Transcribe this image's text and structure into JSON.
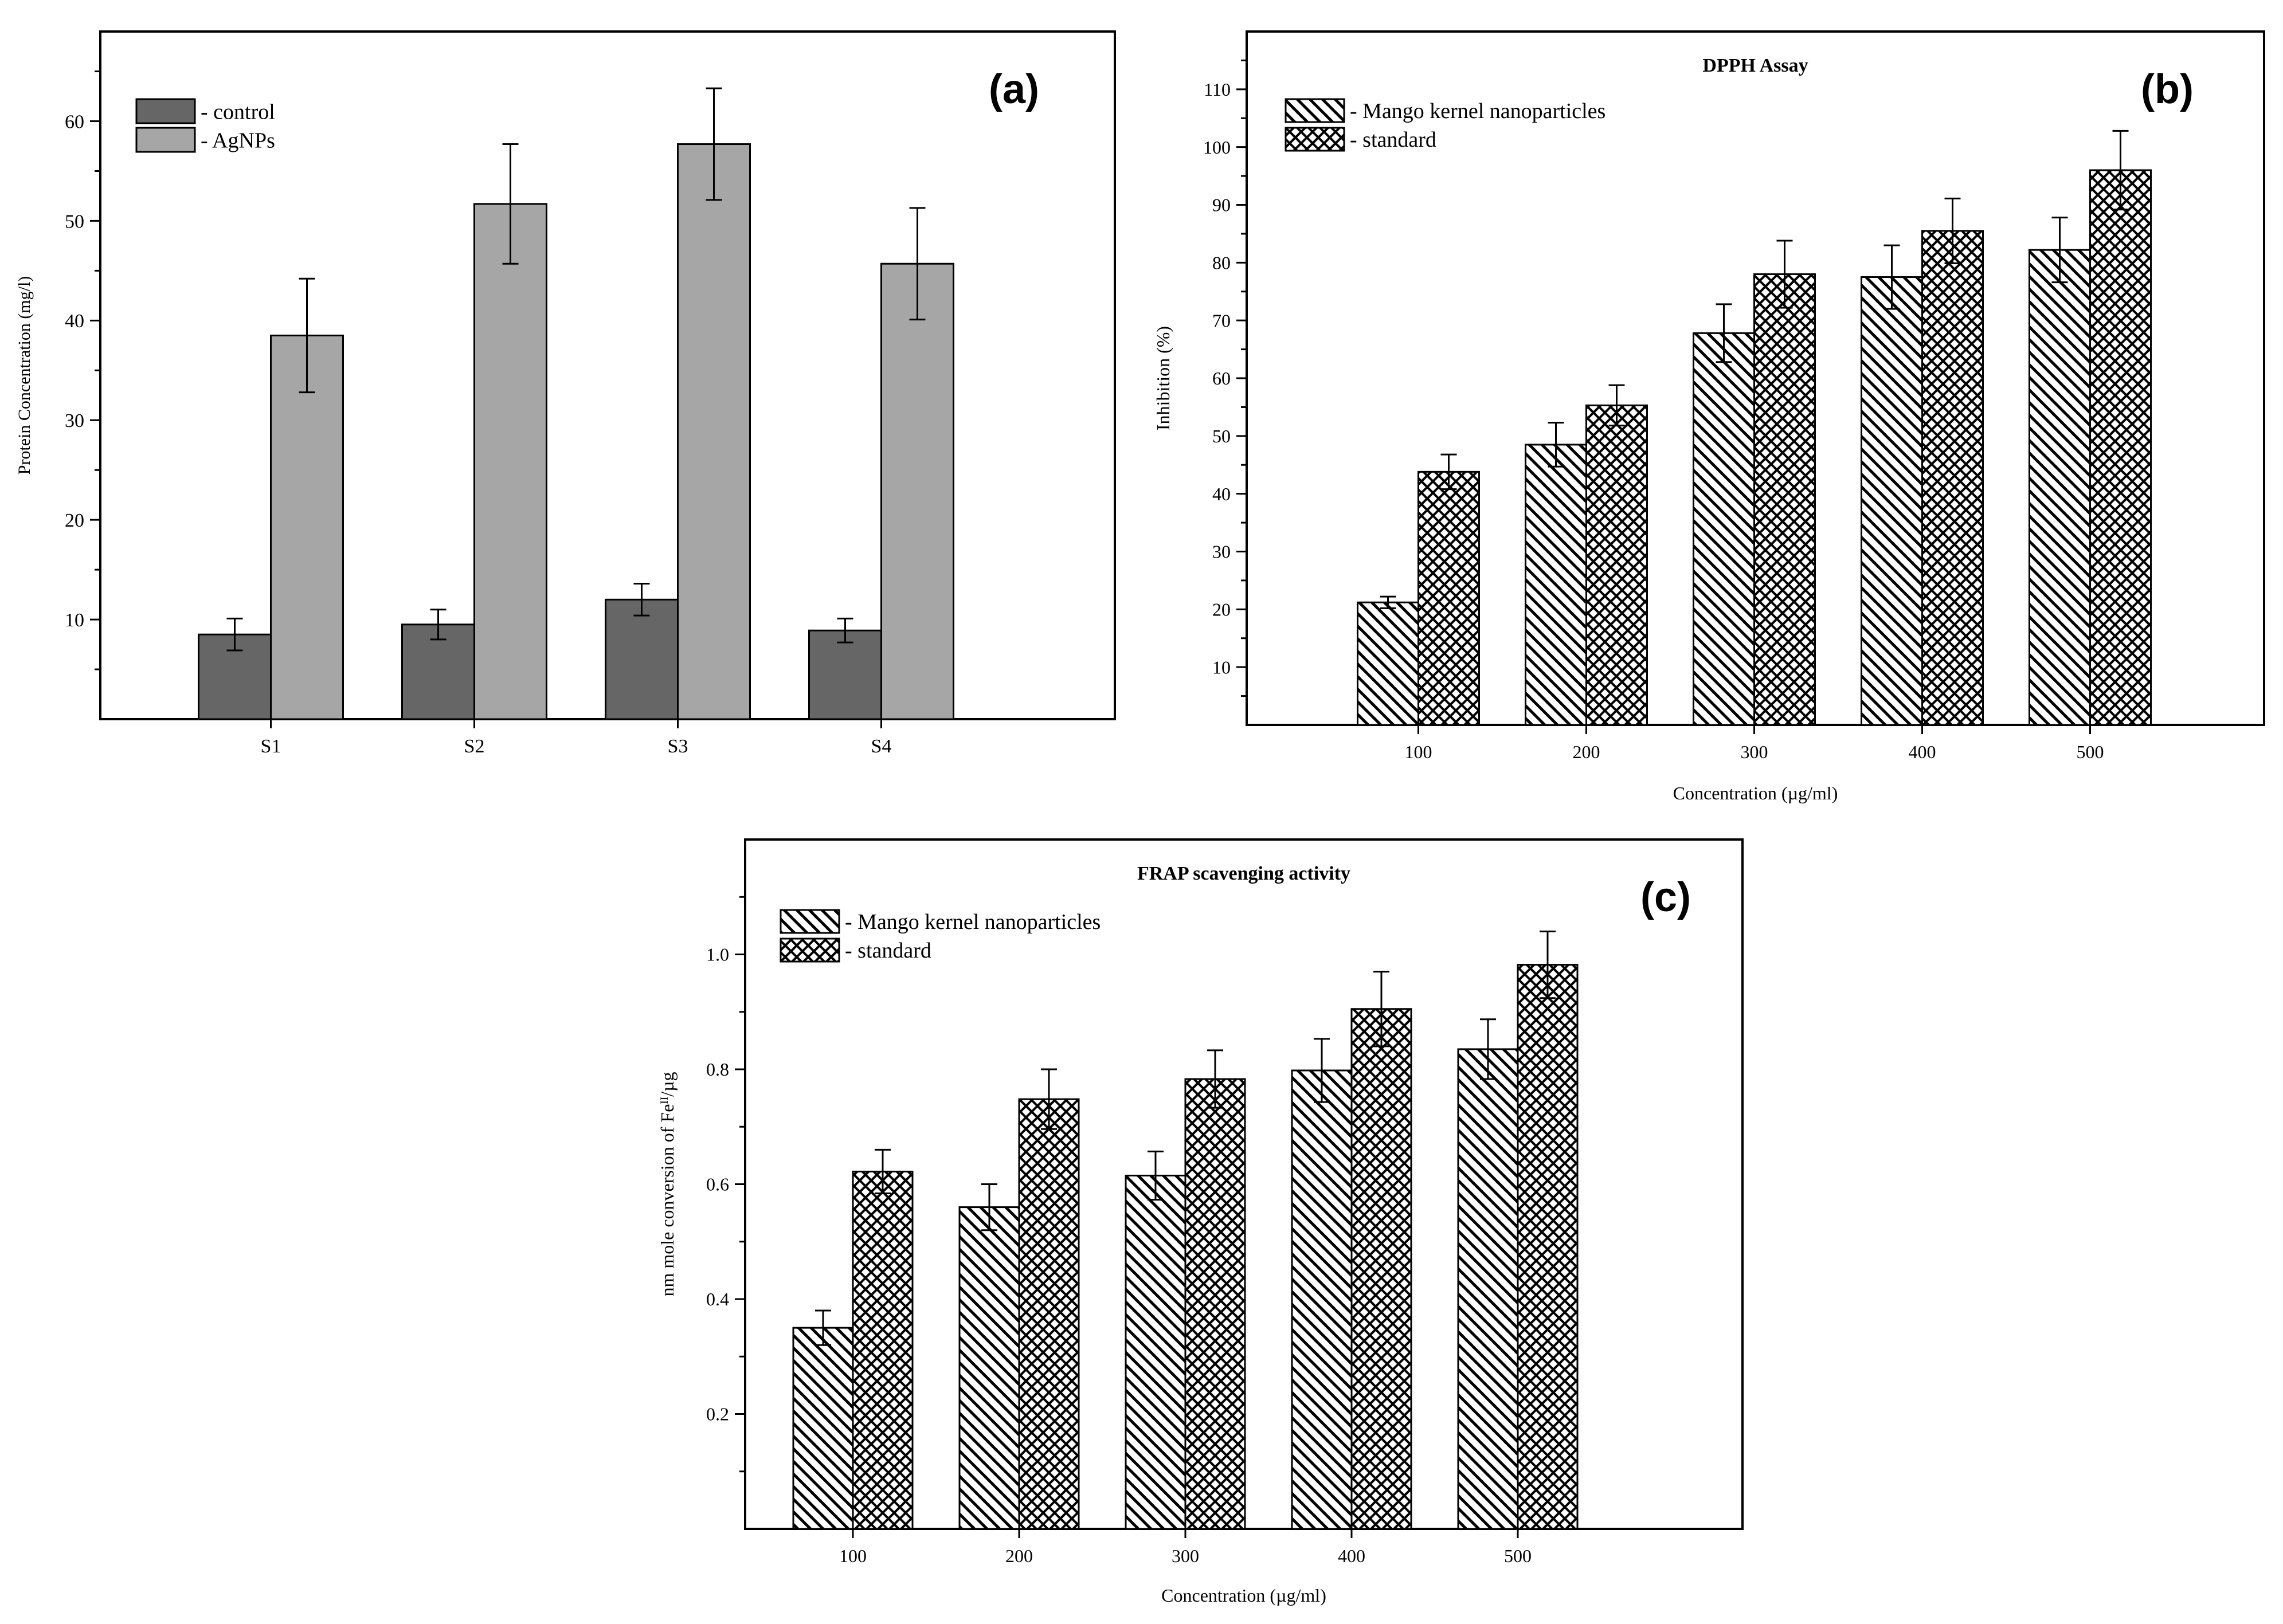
{
  "chart_data": [
    {
      "type": "bar",
      "panel_label": "(a)",
      "title": "",
      "xlabel": "",
      "ylabel": "Protein Concentration (mg/l)",
      "ylim": [
        0,
        69
      ],
      "yticks": [
        10,
        20,
        30,
        40,
        50,
        60
      ],
      "categories": [
        "S1",
        "S2",
        "S3",
        "S4"
      ],
      "series": [
        {
          "name": "- control",
          "fill": "solid",
          "color": "#666666",
          "values": [
            8.5,
            9.5,
            12.0,
            8.9
          ],
          "errors": [
            1.6,
            1.5,
            1.6,
            1.2
          ]
        },
        {
          "name": "- AgNPs",
          "fill": "solid",
          "color": "#a6a6a6",
          "values": [
            38.5,
            51.7,
            57.7,
            45.7
          ],
          "errors": [
            5.7,
            6.0,
            5.6,
            5.6
          ]
        }
      ],
      "legend": "top-left"
    },
    {
      "type": "bar",
      "panel_label": "(b)",
      "title": "DPPH Assay",
      "xlabel": "Concentration (µg/ml)",
      "ylabel": "Inhibition (%)",
      "ylim": [
        0,
        120
      ],
      "yticks": [
        10,
        20,
        30,
        40,
        50,
        60,
        70,
        80,
        90,
        100,
        110
      ],
      "categories": [
        "100",
        "200",
        "300",
        "400",
        "500"
      ],
      "series": [
        {
          "name": "- Mango kernel nanoparticles",
          "fill": "diagonal",
          "values": [
            21.2,
            48.5,
            67.8,
            77.5,
            82.2
          ],
          "errors": [
            1.0,
            3.8,
            5.0,
            5.5,
            5.6
          ]
        },
        {
          "name": "- standard",
          "fill": "crosshatch",
          "values": [
            43.8,
            55.3,
            78.0,
            85.5,
            96.0
          ],
          "errors": [
            3.0,
            3.5,
            5.8,
            5.6,
            6.8
          ]
        }
      ],
      "legend": "top-left"
    },
    {
      "type": "bar",
      "panel_label": "(c)",
      "title": "FRAP scavenging activity",
      "xlabel": "Concentration (µg/ml)",
      "ylabel": "nm mole conversion of Fe",
      "ylabel_sup": "II",
      "ylabel_tail": "/µg",
      "ylim": [
        0,
        1.2
      ],
      "yticks": [
        "0.2",
        "0.4",
        "0.6",
        "0.8",
        "1.0"
      ],
      "categories": [
        "100",
        "200",
        "300",
        "400",
        "500"
      ],
      "series": [
        {
          "name": "- Mango kernel nanoparticles",
          "fill": "diagonal",
          "values": [
            0.35,
            0.56,
            0.615,
            0.798,
            0.835
          ],
          "errors": [
            0.03,
            0.04,
            0.042,
            0.055,
            0.052
          ]
        },
        {
          "name": "- standard",
          "fill": "crosshatch",
          "values": [
            0.622,
            0.748,
            0.783,
            0.905,
            0.982
          ],
          "errors": [
            0.038,
            0.052,
            0.05,
            0.065,
            0.058
          ]
        }
      ],
      "legend": "top-left"
    }
  ]
}
